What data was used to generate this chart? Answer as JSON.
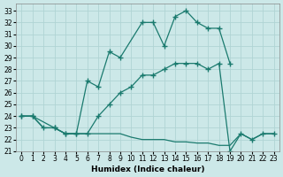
{
  "xlabel": "Humidex (Indice chaleur)",
  "bg_color": "#cce8e8",
  "grid_color": "#b0d4d4",
  "line_color": "#1a7a6e",
  "xlim": [
    -0.5,
    23.5
  ],
  "ylim": [
    21,
    33.6
  ],
  "yticks": [
    21,
    22,
    23,
    24,
    25,
    26,
    27,
    28,
    29,
    30,
    31,
    32,
    33
  ],
  "xticks": [
    0,
    1,
    2,
    3,
    4,
    5,
    6,
    7,
    8,
    9,
    10,
    11,
    12,
    13,
    14,
    15,
    16,
    17,
    18,
    19,
    20,
    21,
    22,
    23
  ],
  "line1_x": [
    0,
    1,
    3,
    4,
    5,
    6,
    7,
    8,
    9,
    11,
    12,
    13,
    14,
    15,
    16,
    17,
    18,
    19
  ],
  "line1_y": [
    24.0,
    24.0,
    23.0,
    22.5,
    22.5,
    27.0,
    26.5,
    29.5,
    29.0,
    32.0,
    32.0,
    30.0,
    32.5,
    33.0,
    32.0,
    31.5,
    31.5,
    28.5
  ],
  "line2_x": [
    0,
    1,
    2,
    3,
    4,
    5,
    6,
    7,
    8,
    9,
    10,
    11,
    12,
    13,
    14,
    15,
    16,
    17,
    18,
    19,
    20,
    21,
    22,
    23
  ],
  "line2_y": [
    24.0,
    24.0,
    23.0,
    23.0,
    22.5,
    22.5,
    22.5,
    24.0,
    25.0,
    26.0,
    26.5,
    27.5,
    27.5,
    28.0,
    28.5,
    28.5,
    28.5,
    28.0,
    28.5,
    21.0,
    22.5,
    22.0,
    22.5,
    22.5
  ],
  "line3_x": [
    0,
    1,
    2,
    3,
    4,
    5,
    6,
    7,
    8,
    9,
    10,
    11,
    12,
    13,
    14,
    15,
    16,
    17,
    18,
    19,
    20,
    21,
    22,
    23
  ],
  "line3_y": [
    24.0,
    24.0,
    23.0,
    23.0,
    22.5,
    22.5,
    22.5,
    22.5,
    22.5,
    22.5,
    22.2,
    22.0,
    22.0,
    22.0,
    21.8,
    21.8,
    21.7,
    21.7,
    21.5,
    21.5,
    22.5,
    22.0,
    22.5,
    22.5
  ]
}
